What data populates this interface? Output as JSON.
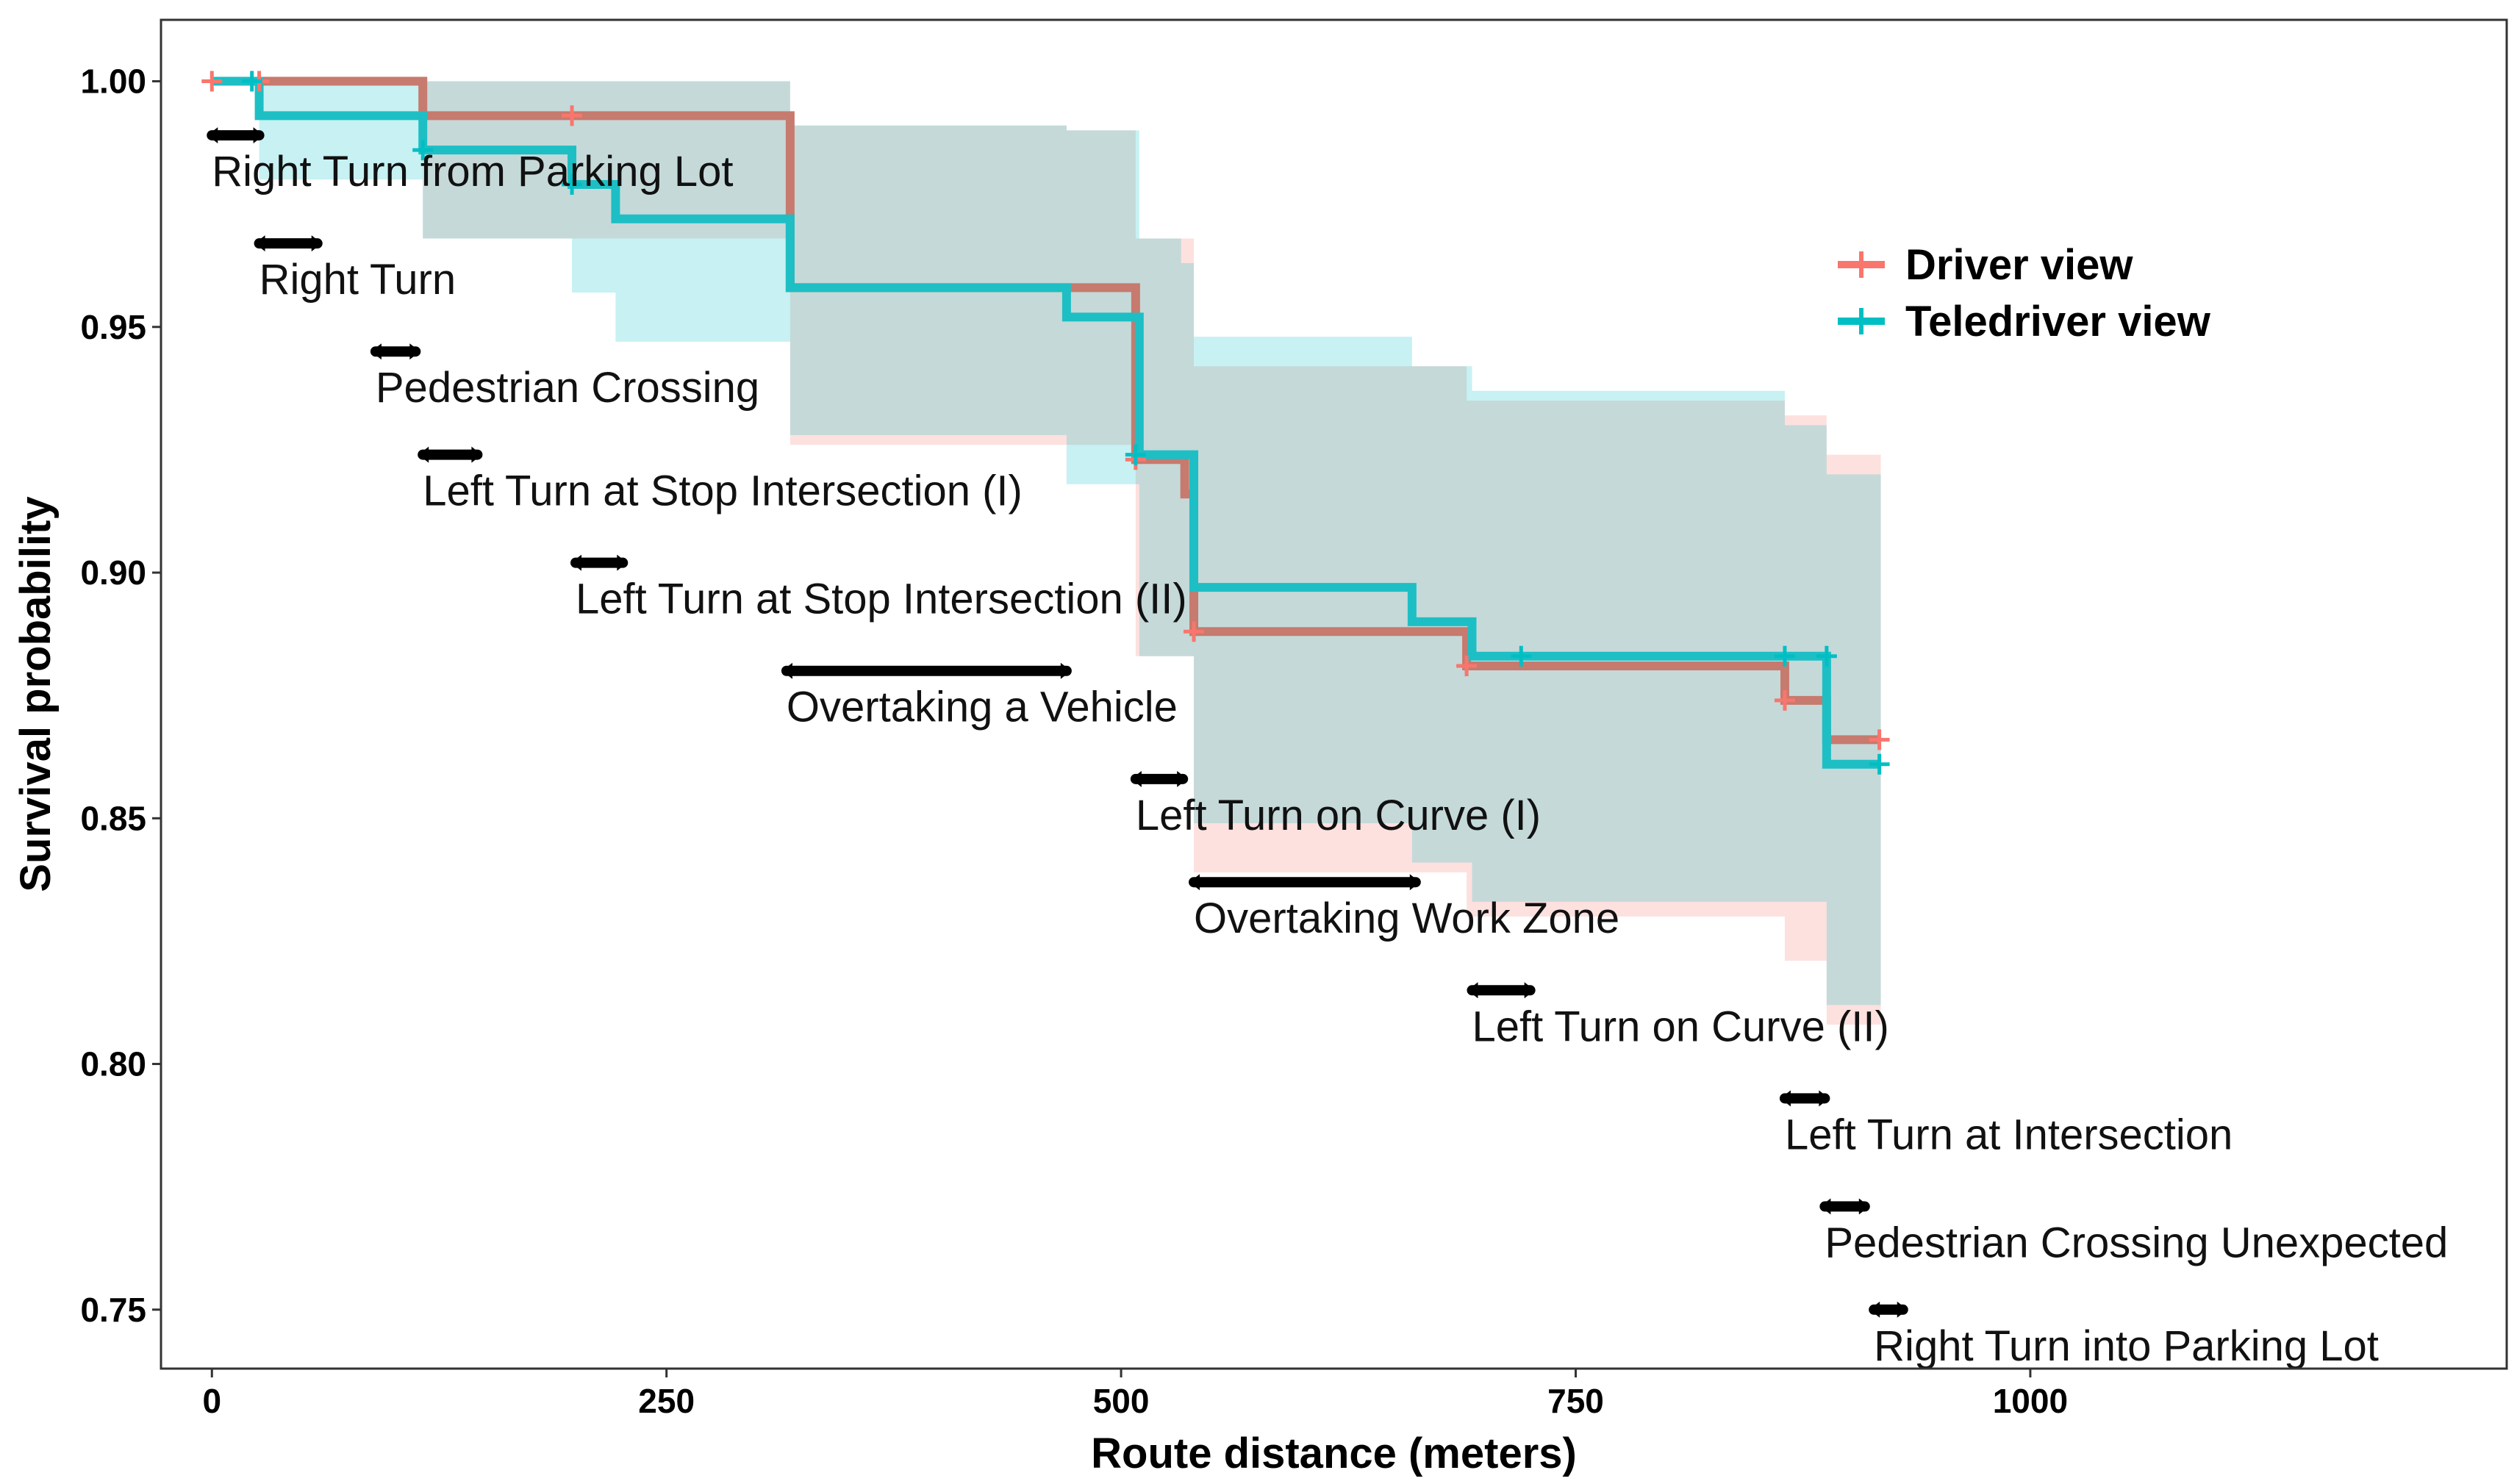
{
  "chart_data": {
    "type": "line",
    "subtype": "kaplan-meier survival curve",
    "title": "",
    "xlabel": "Route distance (meters)",
    "ylabel": "Survival probability",
    "xlim": [
      -28,
      1262
    ],
    "ylim": [
      0.738,
      1.0125
    ],
    "x_ticks": [
      0,
      250,
      500,
      750,
      1000
    ],
    "x_tick_labels": [
      "0",
      "250",
      "500",
      "750",
      "1000"
    ],
    "y_ticks": [
      0.75,
      0.8,
      0.85,
      0.9,
      0.95,
      1.0
    ],
    "y_tick_labels": [
      "0.75",
      "0.80",
      "0.85",
      "0.90",
      "0.95",
      "1.00"
    ],
    "legend": {
      "position": "top-right",
      "entries": [
        {
          "name": "Driver view",
          "color": "#F8766D"
        },
        {
          "name": "Teledriver view",
          "color": "#00BFC4"
        }
      ]
    },
    "series": [
      {
        "name": "Driver view",
        "color": "#F8766D",
        "line_color": "#C77A6E",
        "ci_color": "#F8766D",
        "steps": [
          {
            "x": 0,
            "y": 1.0
          },
          {
            "x": 116,
            "y": 0.993
          },
          {
            "x": 318,
            "y": 0.958
          },
          {
            "x": 508,
            "y": 0.923
          },
          {
            "x": 535,
            "y": 0.916
          },
          {
            "x": 540,
            "y": 0.888
          },
          {
            "x": 690,
            "y": 0.881
          },
          {
            "x": 865,
            "y": 0.874
          },
          {
            "x": 888,
            "y": 0.866
          },
          {
            "x": 917,
            "y": 0.866
          }
        ],
        "ci_steps": [
          {
            "x": 0,
            "lo": 1.0,
            "hi": 1.0
          },
          {
            "x": 116,
            "lo": 0.968,
            "hi": 1.0
          },
          {
            "x": 318,
            "lo": 0.926,
            "hi": 0.991
          },
          {
            "x": 470,
            "lo": 0.926,
            "hi": 0.99
          },
          {
            "x": 508,
            "lo": 0.883,
            "hi": 0.968
          },
          {
            "x": 540,
            "lo": 0.839,
            "hi": 0.942
          },
          {
            "x": 690,
            "lo": 0.83,
            "hi": 0.935
          },
          {
            "x": 865,
            "lo": 0.821,
            "hi": 0.932
          },
          {
            "x": 888,
            "lo": 0.808,
            "hi": 0.924
          },
          {
            "x": 917,
            "lo": 0.808,
            "hi": 0.924
          }
        ],
        "censor_marks": [
          {
            "x": 0,
            "y": 1.0
          },
          {
            "x": 26,
            "y": 1.0
          },
          {
            "x": 198,
            "y": 0.993
          },
          {
            "x": 508,
            "y": 0.923
          },
          {
            "x": 540,
            "y": 0.888
          },
          {
            "x": 690,
            "y": 0.881
          },
          {
            "x": 865,
            "y": 0.874
          },
          {
            "x": 917,
            "y": 0.866
          }
        ]
      },
      {
        "name": "Teledriver view",
        "color": "#00BFC4",
        "line_color": "#1DBFC4",
        "ci_color": "#00BFC4",
        "steps": [
          {
            "x": 0,
            "y": 1.0
          },
          {
            "x": 26,
            "y": 0.993
          },
          {
            "x": 116,
            "y": 0.986
          },
          {
            "x": 198,
            "y": 0.979
          },
          {
            "x": 222,
            "y": 0.972
          },
          {
            "x": 318,
            "y": 0.958
          },
          {
            "x": 470,
            "y": 0.952
          },
          {
            "x": 510,
            "y": 0.924
          },
          {
            "x": 540,
            "y": 0.897
          },
          {
            "x": 660,
            "y": 0.89
          },
          {
            "x": 693,
            "y": 0.883
          },
          {
            "x": 888,
            "y": 0.861
          },
          {
            "x": 917,
            "y": 0.861
          }
        ],
        "ci_steps": [
          {
            "x": 0,
            "lo": 1.0,
            "hi": 1.0
          },
          {
            "x": 26,
            "lo": 0.98,
            "hi": 1.0
          },
          {
            "x": 116,
            "lo": 0.968,
            "hi": 1.0
          },
          {
            "x": 198,
            "lo": 0.957,
            "hi": 1.0
          },
          {
            "x": 222,
            "lo": 0.947,
            "hi": 1.0
          },
          {
            "x": 318,
            "lo": 0.928,
            "hi": 0.991
          },
          {
            "x": 470,
            "lo": 0.918,
            "hi": 0.99
          },
          {
            "x": 510,
            "lo": 0.883,
            "hi": 0.968
          },
          {
            "x": 533,
            "lo": 0.883,
            "hi": 0.963
          },
          {
            "x": 540,
            "lo": 0.849,
            "hi": 0.948
          },
          {
            "x": 660,
            "lo": 0.841,
            "hi": 0.942
          },
          {
            "x": 693,
            "lo": 0.833,
            "hi": 0.937
          },
          {
            "x": 865,
            "lo": 0.833,
            "hi": 0.93
          },
          {
            "x": 888,
            "lo": 0.812,
            "hi": 0.92
          },
          {
            "x": 917,
            "lo": 0.812,
            "hi": 0.92
          }
        ],
        "censor_marks": [
          {
            "x": 22,
            "y": 1.0
          },
          {
            "x": 116,
            "y": 0.986
          },
          {
            "x": 198,
            "y": 0.979
          },
          {
            "x": 508,
            "y": 0.924
          },
          {
            "x": 720,
            "y": 0.883
          },
          {
            "x": 865,
            "y": 0.883
          },
          {
            "x": 888,
            "y": 0.883
          },
          {
            "x": 917,
            "y": 0.861
          }
        ]
      }
    ],
    "maneuvers": [
      {
        "label": "Right Turn from Parking Lot",
        "x_start": 0,
        "x_end": 26,
        "y": 0.989
      },
      {
        "label": "Right Turn",
        "x_start": 26,
        "x_end": 58,
        "y": 0.967
      },
      {
        "label": "Pedestrian Crossing",
        "x_start": 90,
        "x_end": 112,
        "y": 0.945
      },
      {
        "label": "Left Turn at Stop Intersection (I)",
        "x_start": 116,
        "x_end": 146,
        "y": 0.924
      },
      {
        "label": "Left Turn at Stop Intersection (II)",
        "x_start": 200,
        "x_end": 226,
        "y": 0.902
      },
      {
        "label": "Overtaking a Vehicle",
        "x_start": 316,
        "x_end": 470,
        "y": 0.88
      },
      {
        "label": "Left Turn on Curve (I)",
        "x_start": 508,
        "x_end": 534,
        "y": 0.858
      },
      {
        "label": "Overtaking Work Zone",
        "x_start": 540,
        "x_end": 662,
        "y": 0.837
      },
      {
        "label": "Left Turn on Curve (II)",
        "x_start": 693,
        "x_end": 725,
        "y": 0.815
      },
      {
        "label": "Left Turn at Intersection",
        "x_start": 865,
        "x_end": 887,
        "y": 0.793
      },
      {
        "label": "Pedestrian Crossing Unexpected",
        "x_start": 887,
        "x_end": 909,
        "y": 0.771
      },
      {
        "label": "Right Turn into Parking Lot",
        "x_start": 914,
        "x_end": 930,
        "y": 0.75
      }
    ]
  }
}
